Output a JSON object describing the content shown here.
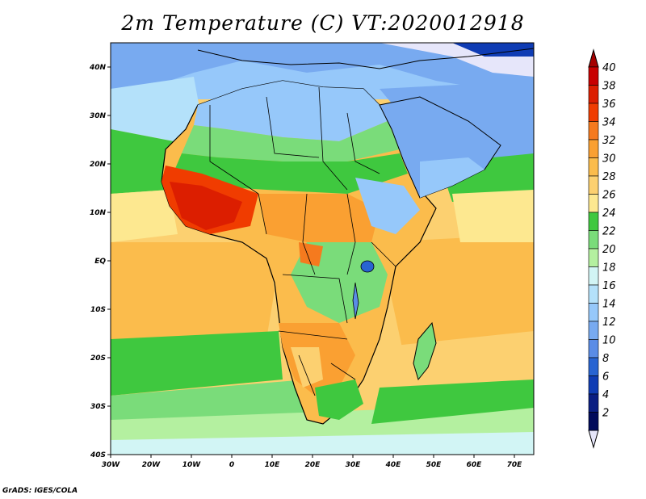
{
  "title": "2m Temperature (C) VT:2020012918",
  "credit": "GrADS: IGES/COLA",
  "lon_ticks": [
    "30W",
    "20W",
    "10W",
    "0",
    "10E",
    "20E",
    "30E",
    "40E",
    "50E",
    "60E",
    "70E"
  ],
  "lat_ticks": [
    "40N",
    "30N",
    "20N",
    "10N",
    "EQ",
    "10S",
    "20S",
    "30S",
    "40S"
  ],
  "colorbar": {
    "labels": [
      "40",
      "38",
      "36",
      "34",
      "32",
      "30",
      "28",
      "26",
      "24",
      "22",
      "20",
      "18",
      "16",
      "14",
      "12",
      "10",
      "8",
      "6",
      "4",
      "2"
    ],
    "top_arrow_color": "#a50000",
    "bottom_arrow_color": "#e6e6fa",
    "colors": [
      "#c80000",
      "#dc1e00",
      "#f03c00",
      "#f57a1e",
      "#faa032",
      "#fbbc4c",
      "#fcd070",
      "#fde890",
      "#3fc83f",
      "#7adc7a",
      "#b4f0a0",
      "#d2f5f5",
      "#b4e1fa",
      "#96c8fa",
      "#78aaf0",
      "#5a8ce6",
      "#2864d2",
      "#0f3cb4",
      "#0a1e82",
      "#000a5a"
    ]
  }
}
